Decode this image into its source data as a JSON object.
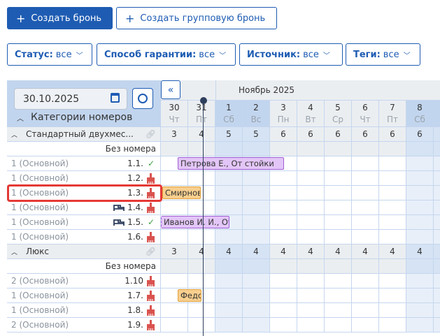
{
  "toolbar": {
    "create_booking": "Создать бронь",
    "create_group_booking": "Создать групповую бронь"
  },
  "filters": [
    {
      "label": "Статус:",
      "value": "все"
    },
    {
      "label": "Способ гарантии:",
      "value": "все"
    },
    {
      "label": "Источник:",
      "value": "все"
    },
    {
      "label": "Теги:",
      "value": "все"
    }
  ],
  "date_input": "30.10.2025",
  "categories_header": "Категории номеров",
  "month_label": "Ноябрь 2025",
  "days": [
    {
      "d": "30",
      "w": "Чт",
      "weekend": false
    },
    {
      "d": "31",
      "w": "Пт",
      "weekend": false
    },
    {
      "d": "1",
      "w": "Сб",
      "weekend": true
    },
    {
      "d": "2",
      "w": "Вс",
      "weekend": true
    },
    {
      "d": "3",
      "w": "Пн",
      "weekend": false
    },
    {
      "d": "4",
      "w": "Вт",
      "weekend": false
    },
    {
      "d": "5",
      "w": "Ср",
      "weekend": false
    },
    {
      "d": "6",
      "w": "Чт",
      "weekend": false
    },
    {
      "d": "7",
      "w": "Пт",
      "weekend": false
    },
    {
      "d": "8",
      "w": "Сб",
      "weekend": true
    },
    {
      "d": "",
      "w": "",
      "weekend": true
    }
  ],
  "groups": [
    {
      "name": "Стандартный двухмес...",
      "counts": [
        "3",
        "4",
        "5",
        "5",
        "6",
        "6",
        "6",
        "6",
        "6",
        "6",
        ""
      ],
      "no_room": "Без номера",
      "rooms": [
        {
          "type": "1 (Основной)",
          "num": "1.1.",
          "status": "clean",
          "bed": false
        },
        {
          "type": "1 (Основной)",
          "num": "1.2.",
          "status": "dirty",
          "bed": false
        },
        {
          "type": "1 (Основной)",
          "num": "1.3.",
          "status": "dirty",
          "bed": false,
          "highlight": true
        },
        {
          "type": "1 (Основной)",
          "num": "1.4.",
          "status": "dirty",
          "bed": true
        },
        {
          "type": "1 (Основной)",
          "num": "1.5.",
          "status": "clean",
          "bed": true
        },
        {
          "type": "1 (Основной)",
          "num": "1.6.",
          "status": "dirty",
          "bed": false
        }
      ]
    },
    {
      "name": "Люкс",
      "counts": [
        "3",
        "4",
        "4",
        "4",
        "4",
        "4",
        "4",
        "4",
        "4",
        "4",
        ""
      ],
      "no_room": "Без номера",
      "rooms": [
        {
          "type": "2 (Основной)",
          "num": "1.10",
          "status": "dirty",
          "bed": false
        },
        {
          "type": "1 (Основной)",
          "num": "1.7.",
          "status": "dirty",
          "bed": false
        },
        {
          "type": "1 (Основной)",
          "num": "1.8.",
          "status": "dirty",
          "bed": false
        },
        {
          "type": "2 (Основной)",
          "num": "1.9.",
          "status": "dirty",
          "bed": false
        }
      ]
    }
  ],
  "bookings": [
    {
      "label": "Петрова Е., От стойки",
      "row": 2,
      "color": "purple"
    },
    {
      "label": "Смирнов",
      "row": 4,
      "color": "orange"
    },
    {
      "label": "Иванов И. И., От",
      "row": 6,
      "color": "purple"
    },
    {
      "label": "Федо|",
      "row": 11,
      "color": "orange"
    }
  ],
  "colors": {
    "accent": "#1e5cb3",
    "highlight": "#e53935",
    "clean": "#43a047",
    "dirty": "#d9534f",
    "purple": "#e3c6f7",
    "orange": "#f8cf8e"
  }
}
